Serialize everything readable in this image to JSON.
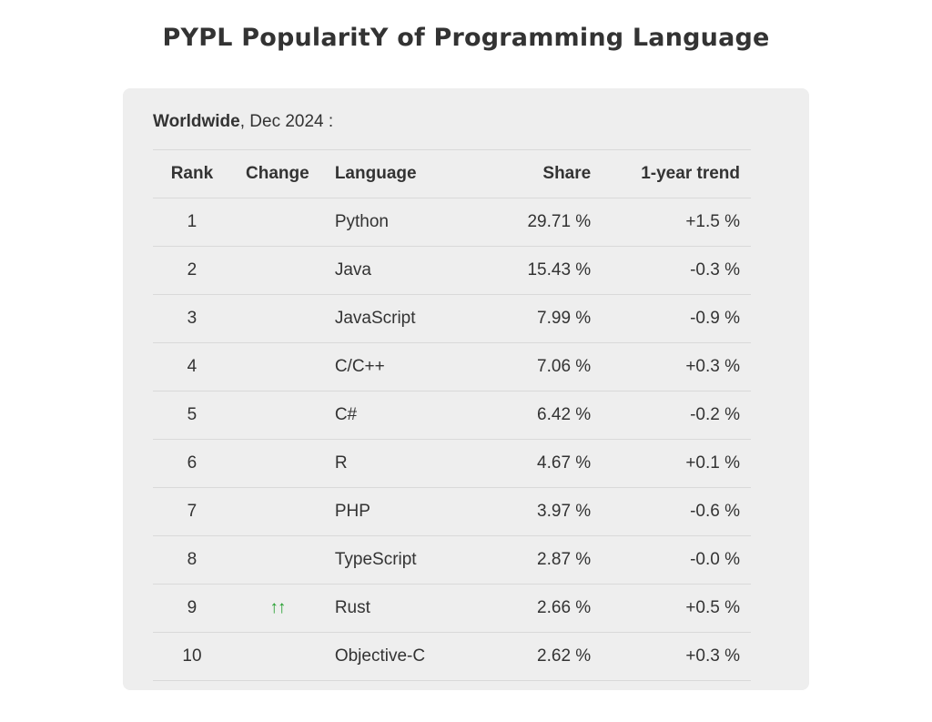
{
  "title": "PYPL PopularitY of Programming Language",
  "region": {
    "name": "Worldwide",
    "suffix": ", Dec 2024 :"
  },
  "columns": [
    "Rank",
    "Change",
    "Language",
    "Share",
    "1-year trend"
  ],
  "colors": {
    "card_background": "#eeeeee",
    "text": "#333333",
    "up_arrow": "#1f9d2a",
    "row_divider": "#d9d9d9"
  },
  "rows": [
    {
      "rank": "1",
      "change": "",
      "language": "Python",
      "share": "29.71 %",
      "trend": "+1.5 %"
    },
    {
      "rank": "2",
      "change": "",
      "language": "Java",
      "share": "15.43 %",
      "trend": "-0.3 %"
    },
    {
      "rank": "3",
      "change": "",
      "language": "JavaScript",
      "share": "7.99 %",
      "trend": "-0.9 %"
    },
    {
      "rank": "4",
      "change": "",
      "language": "C/C++",
      "share": "7.06 %",
      "trend": "+0.3 %"
    },
    {
      "rank": "5",
      "change": "",
      "language": "C#",
      "share": "6.42 %",
      "trend": "-0.2 %"
    },
    {
      "rank": "6",
      "change": "",
      "language": "R",
      "share": "4.67 %",
      "trend": "+0.1 %"
    },
    {
      "rank": "7",
      "change": "",
      "language": "PHP",
      "share": "3.97 %",
      "trend": "-0.6 %"
    },
    {
      "rank": "8",
      "change": "",
      "language": "TypeScript",
      "share": "2.87 %",
      "trend": "-0.0 %"
    },
    {
      "rank": "9",
      "change": "↑↑",
      "change_icon": "double-up-arrow-icon",
      "language": "Rust",
      "share": "2.66 %",
      "trend": "+0.5 %"
    },
    {
      "rank": "10",
      "change": "",
      "language": "Objective-C",
      "share": "2.62 %",
      "trend": "+0.3 %"
    }
  ]
}
